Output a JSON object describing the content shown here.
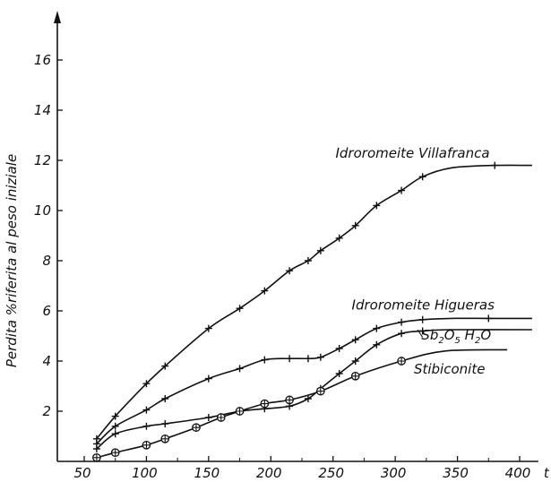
{
  "chart_data": {
    "type": "line",
    "ylabel": "Perdita %riferita al peso iniziale",
    "xunit": "t",
    "xlim": [
      40,
      415
    ],
    "ylim": [
      0,
      18
    ],
    "x_ticks": [
      50,
      100,
      150,
      200,
      250,
      300,
      350,
      400
    ],
    "x_tick_labels": [
      "50",
      "100",
      "150",
      "200",
      "250",
      "300",
      "350",
      "400"
    ],
    "y_ticks": [
      2,
      4,
      6,
      8,
      10,
      12,
      14,
      16
    ],
    "y_tick_labels": [
      "2",
      "4",
      "6",
      "8",
      "10",
      "12",
      "14",
      "16"
    ],
    "grid": false,
    "series": [
      {
        "name": "Idroromeite Villafranca",
        "label": "Idroromeite Villafranca",
        "marker": "plus",
        "curve": [
          [
            60,
            0.9
          ],
          [
            75,
            1.8
          ],
          [
            100,
            3.1
          ],
          [
            115,
            3.8
          ],
          [
            150,
            5.3
          ],
          [
            175,
            6.1
          ],
          [
            195,
            6.8
          ],
          [
            215,
            7.6
          ],
          [
            230,
            8.0
          ],
          [
            240,
            8.4
          ],
          [
            255,
            8.9
          ],
          [
            268,
            9.4
          ],
          [
            285,
            10.2
          ],
          [
            305,
            10.8
          ],
          [
            322,
            11.35
          ],
          [
            345,
            11.7
          ],
          [
            380,
            11.8
          ],
          [
            410,
            11.8
          ]
        ],
        "points": [
          [
            60,
            0.9
          ],
          [
            75,
            1.8
          ],
          [
            100,
            3.1
          ],
          [
            115,
            3.8
          ],
          [
            150,
            5.3
          ],
          [
            175,
            6.1
          ],
          [
            195,
            6.8
          ],
          [
            215,
            7.6
          ],
          [
            230,
            8.0
          ],
          [
            240,
            8.4
          ],
          [
            255,
            8.9
          ],
          [
            268,
            9.4
          ],
          [
            285,
            10.2
          ],
          [
            305,
            10.8
          ],
          [
            322,
            11.35
          ],
          [
            380,
            11.8
          ]
        ]
      },
      {
        "name": "Idroromeite Higueras",
        "label": "Idroromeite Higueras",
        "marker": "plus",
        "curve": [
          [
            60,
            0.7
          ],
          [
            75,
            1.4
          ],
          [
            100,
            2.05
          ],
          [
            115,
            2.5
          ],
          [
            150,
            3.3
          ],
          [
            175,
            3.7
          ],
          [
            195,
            4.05
          ],
          [
            215,
            4.1
          ],
          [
            230,
            4.1
          ],
          [
            240,
            4.15
          ],
          [
            255,
            4.5
          ],
          [
            268,
            4.85
          ],
          [
            285,
            5.3
          ],
          [
            305,
            5.55
          ],
          [
            322,
            5.65
          ],
          [
            345,
            5.7
          ],
          [
            375,
            5.7
          ],
          [
            410,
            5.7
          ]
        ],
        "points": [
          [
            60,
            0.7
          ],
          [
            75,
            1.4
          ],
          [
            100,
            2.05
          ],
          [
            115,
            2.5
          ],
          [
            150,
            3.3
          ],
          [
            175,
            3.7
          ],
          [
            195,
            4.05
          ],
          [
            215,
            4.1
          ],
          [
            230,
            4.1
          ],
          [
            240,
            4.15
          ],
          [
            255,
            4.5
          ],
          [
            268,
            4.85
          ],
          [
            285,
            5.3
          ],
          [
            305,
            5.55
          ],
          [
            322,
            5.65
          ],
          [
            375,
            5.7
          ]
        ]
      },
      {
        "name": "Sb2O5 H2O",
        "label_parts": [
          "Sb",
          "2",
          "O",
          "5",
          " H",
          "2",
          "O"
        ],
        "marker": "plus",
        "curve": [
          [
            60,
            0.5
          ],
          [
            75,
            1.1
          ],
          [
            100,
            1.4
          ],
          [
            115,
            1.5
          ],
          [
            150,
            1.75
          ],
          [
            175,
            2.0
          ],
          [
            195,
            2.1
          ],
          [
            215,
            2.2
          ],
          [
            230,
            2.5
          ],
          [
            240,
            2.9
          ],
          [
            255,
            3.5
          ],
          [
            268,
            4.0
          ],
          [
            285,
            4.65
          ],
          [
            305,
            5.1
          ],
          [
            322,
            5.2
          ],
          [
            345,
            5.25
          ],
          [
            410,
            5.25
          ]
        ],
        "points": [
          [
            60,
            0.5
          ],
          [
            75,
            1.1
          ],
          [
            100,
            1.4
          ],
          [
            115,
            1.5
          ],
          [
            150,
            1.75
          ],
          [
            175,
            2.0
          ],
          [
            195,
            2.1
          ],
          [
            215,
            2.2
          ],
          [
            230,
            2.5
          ],
          [
            240,
            2.9
          ],
          [
            255,
            3.5
          ],
          [
            268,
            4.0
          ],
          [
            285,
            4.65
          ],
          [
            305,
            5.1
          ],
          [
            322,
            5.2
          ]
        ]
      },
      {
        "name": "Stibiconite",
        "label": "Stibiconite",
        "marker": "circle-plus",
        "curve": [
          [
            60,
            0.15
          ],
          [
            75,
            0.35
          ],
          [
            100,
            0.65
          ],
          [
            115,
            0.9
          ],
          [
            140,
            1.35
          ],
          [
            160,
            1.75
          ],
          [
            175,
            2.0
          ],
          [
            195,
            2.3
          ],
          [
            215,
            2.45
          ],
          [
            240,
            2.8
          ],
          [
            268,
            3.4
          ],
          [
            305,
            4.0
          ],
          [
            340,
            4.4
          ],
          [
            390,
            4.45
          ]
        ],
        "points": [
          [
            60,
            0.15
          ],
          [
            75,
            0.35
          ],
          [
            100,
            0.65
          ],
          [
            115,
            0.9
          ],
          [
            140,
            1.35
          ],
          [
            160,
            1.75
          ],
          [
            175,
            2.0
          ],
          [
            195,
            2.3
          ],
          [
            215,
            2.45
          ],
          [
            240,
            2.8
          ],
          [
            268,
            3.4
          ],
          [
            305,
            4.0
          ]
        ]
      }
    ]
  }
}
